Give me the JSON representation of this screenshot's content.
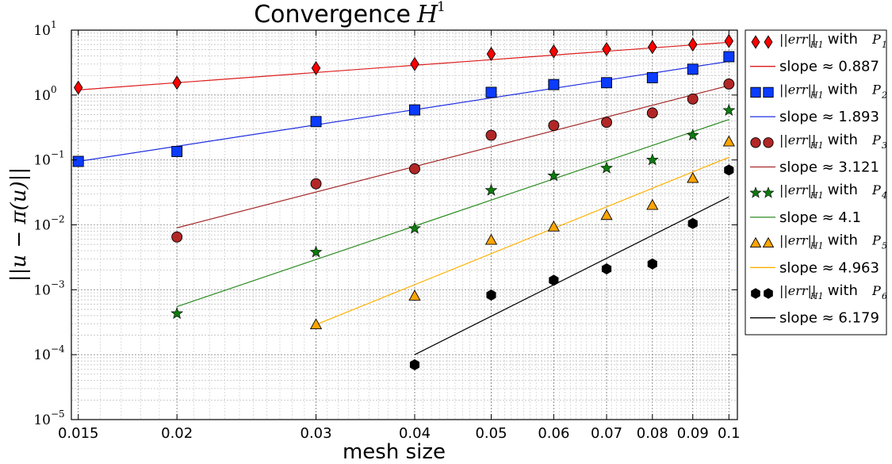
{
  "chart_data": {
    "type": "scatter",
    "title": "Convergence",
    "title_math": "H",
    "title_sup": "1",
    "xlabel": "mesh size",
    "ylabel": "||u − π(u)||",
    "xscale": "log",
    "yscale": "log",
    "xlim": [
      0.0147,
      0.1025
    ],
    "ylim": [
      1e-05,
      10
    ],
    "grid": true,
    "legend_position": "outside-right",
    "xticks": [
      {
        "value": 0.015,
        "label": "0.015"
      },
      {
        "value": 0.02,
        "label": "0.02"
      },
      {
        "value": 0.03,
        "label": "0.03"
      },
      {
        "value": 0.04,
        "label": "0.04"
      },
      {
        "value": 0.05,
        "label": "0.05"
      },
      {
        "value": 0.06,
        "label": "0.06"
      },
      {
        "value": 0.07,
        "label": "0.07"
      },
      {
        "value": 0.08,
        "label": "0.08"
      },
      {
        "value": 0.09,
        "label": "0.09"
      },
      {
        "value": 0.1,
        "label": "0.1"
      }
    ],
    "yticks": [
      {
        "value": 10,
        "base": "10",
        "exp": "1"
      },
      {
        "value": 1,
        "base": "10",
        "exp": "0"
      },
      {
        "value": 0.1,
        "base": "10",
        "exp": "−1"
      },
      {
        "value": 0.01,
        "base": "10",
        "exp": "−2"
      },
      {
        "value": 0.001,
        "base": "10",
        "exp": "−3"
      },
      {
        "value": 0.0001,
        "base": "10",
        "exp": "−4"
      },
      {
        "value": 1e-05,
        "base": "10",
        "exp": "−5"
      }
    ],
    "series": [
      {
        "name": "||err||_H1 with P1",
        "marker": "diamond",
        "color": "#ff0000",
        "line_color": "#dd1c1c",
        "slope_label": "slope ≈ 0.887",
        "x": [
          0.015,
          0.02,
          0.03,
          0.04,
          0.05,
          0.06,
          0.07,
          0.08,
          0.09,
          0.1
        ],
        "y": [
          1.3,
          1.55,
          2.6,
          3.0,
          4.3,
          4.7,
          5.1,
          5.5,
          6.0,
          6.8
        ],
        "fit": {
          "x": [
            0.015,
            0.1
          ],
          "y": [
            1.2,
            6.5
          ]
        }
      },
      {
        "name": "||err||_H1 with P2",
        "marker": "square",
        "color": "#0a3bff",
        "line_color": "#1f2fe0",
        "slope_label": "slope ≈ 1.893",
        "x": [
          0.015,
          0.02,
          0.03,
          0.04,
          0.05,
          0.06,
          0.07,
          0.08,
          0.09,
          0.1
        ],
        "y": [
          0.095,
          0.135,
          0.39,
          0.59,
          1.1,
          1.45,
          1.55,
          1.85,
          2.5,
          3.9
        ],
        "fit": {
          "x": [
            0.015,
            0.1
          ],
          "y": [
            0.095,
            3.3
          ]
        }
      },
      {
        "name": "||err||_H1 with P3",
        "marker": "circle",
        "color": "#b22626",
        "line_color": "#a52a2a",
        "slope_label": "slope ≈ 3.121",
        "x": [
          0.02,
          0.03,
          0.04,
          0.05,
          0.06,
          0.07,
          0.08,
          0.09,
          0.1
        ],
        "y": [
          0.0065,
          0.043,
          0.073,
          0.24,
          0.34,
          0.38,
          0.53,
          0.87,
          1.48
        ],
        "fit": {
          "x": [
            0.02,
            0.1
          ],
          "y": [
            0.009,
            1.4
          ]
        }
      },
      {
        "name": "||err||_H1 with P4",
        "marker": "star",
        "color": "#0e7a0e",
        "line_color": "#2a8c1f",
        "slope_label": "slope ≈ 4.1",
        "x": [
          0.02,
          0.03,
          0.04,
          0.05,
          0.06,
          0.07,
          0.08,
          0.09,
          0.1
        ],
        "y": [
          0.00043,
          0.0038,
          0.0088,
          0.034,
          0.057,
          0.075,
          0.1,
          0.24,
          0.58
        ],
        "fit": {
          "x": [
            0.02,
            0.1
          ],
          "y": [
            0.00055,
            0.42
          ]
        }
      },
      {
        "name": "||err||_H1 with P5",
        "marker": "triangle",
        "color": "#ffa500",
        "line_color": "#ffb000",
        "slope_label": "slope ≈ 4.963",
        "x": [
          0.03,
          0.04,
          0.05,
          0.06,
          0.07,
          0.08,
          0.09,
          0.1
        ],
        "y": [
          0.00029,
          0.0008,
          0.0058,
          0.0093,
          0.014,
          0.02,
          0.052,
          0.19
        ],
        "fit": {
          "x": [
            0.03,
            0.1
          ],
          "y": [
            0.00029,
            0.11
          ]
        }
      },
      {
        "name": "||err||_H1 with P6",
        "marker": "hexagon",
        "color": "#000000",
        "line_color": "#000000",
        "slope_label": "slope ≈ 6.179",
        "x": [
          0.04,
          0.05,
          0.06,
          0.07,
          0.08,
          0.09,
          0.1
        ],
        "y": [
          7e-05,
          0.00083,
          0.0014,
          0.0021,
          0.0025,
          0.0105,
          0.07
        ],
        "fit": {
          "x": [
            0.04,
            0.1
          ],
          "y": [
            0.0001,
            0.027
          ]
        }
      }
    ],
    "legend": [
      {
        "kind": "marker",
        "series": 0,
        "math": "||err||",
        "sub": "H1",
        "text": " with ",
        "p": "P",
        "p_sub": "1"
      },
      {
        "kind": "line",
        "series": 0,
        "text": "slope ≈ 0.887"
      },
      {
        "kind": "marker",
        "series": 1,
        "math": "||err||",
        "sub": "H1",
        "text": " with ",
        "p": "P",
        "p_sub": "2"
      },
      {
        "kind": "line",
        "series": 1,
        "text": "slope ≈ 1.893"
      },
      {
        "kind": "marker",
        "series": 2,
        "math": "||err||",
        "sub": "H1",
        "text": " with ",
        "p": "P",
        "p_sub": "3"
      },
      {
        "kind": "line",
        "series": 2,
        "text": "slope ≈ 3.121"
      },
      {
        "kind": "marker",
        "series": 3,
        "math": "||err||",
        "sub": "H1",
        "text": " with ",
        "p": "P",
        "p_sub": "4"
      },
      {
        "kind": "line",
        "series": 3,
        "text": "slope ≈ 4.1"
      },
      {
        "kind": "marker",
        "series": 4,
        "math": "||err||",
        "sub": "H1",
        "text": " with ",
        "p": "P",
        "p_sub": "5"
      },
      {
        "kind": "line",
        "series": 4,
        "text": "slope ≈ 4.963"
      },
      {
        "kind": "marker",
        "series": 5,
        "math": "||err||",
        "sub": "H1",
        "text": " with ",
        "p": "P",
        "p_sub": "6"
      },
      {
        "kind": "line",
        "series": 5,
        "text": "slope ≈ 6.179"
      }
    ]
  }
}
